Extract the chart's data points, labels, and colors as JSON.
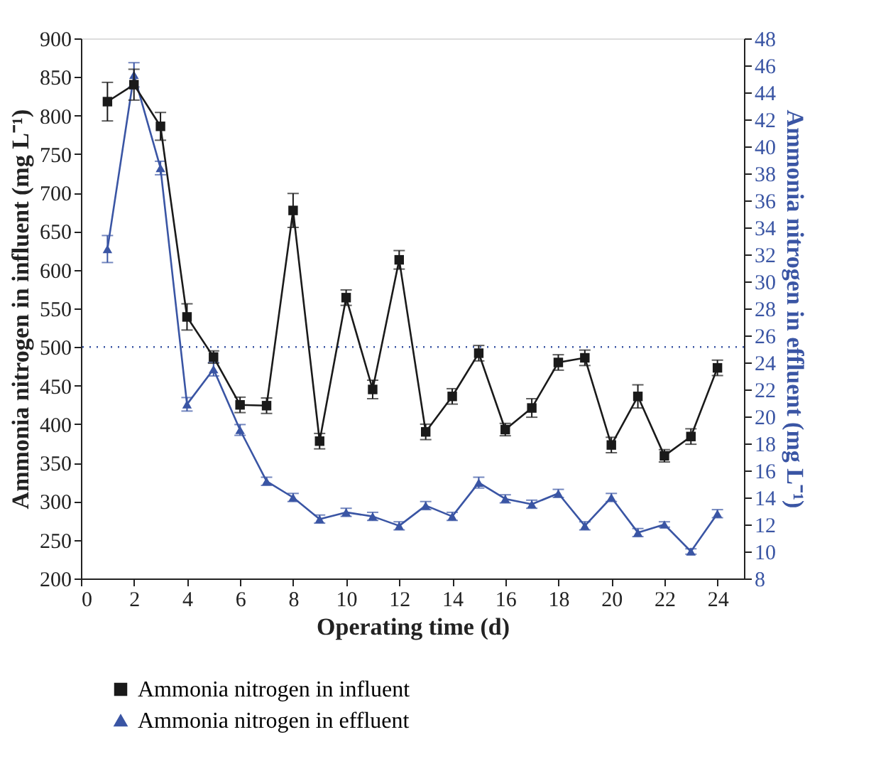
{
  "chart_data": {
    "type": "line",
    "xlabel": "Operating time (d)",
    "ylabel": "Ammonia nitrogen in influent (mg L⁻¹)",
    "y2label": "Ammonia nitrogen in effluent (mg L⁻¹)",
    "x": [
      1,
      2,
      3,
      4,
      5,
      6,
      7,
      8,
      9,
      10,
      11,
      12,
      13,
      14,
      15,
      16,
      17,
      18,
      19,
      20,
      21,
      22,
      23,
      24
    ],
    "series": [
      {
        "name": "Ammonia nitrogen in influent",
        "color": "#1a1a1a",
        "marker": "square",
        "axis": "y",
        "values": [
          818,
          840,
          786,
          539,
          487,
          425,
          424,
          677,
          378,
          564,
          445,
          613,
          390,
          436,
          492,
          393,
          421,
          480,
          486,
          373,
          436,
          359,
          384,
          473
        ],
        "errors": [
          25,
          20,
          18,
          17,
          8,
          10,
          10,
          22,
          10,
          10,
          12,
          12,
          10,
          10,
          10,
          8,
          12,
          10,
          10,
          10,
          15,
          8,
          10,
          10
        ]
      },
      {
        "name": "Ammonia nitrogen in effluent",
        "color": "#3a55a4",
        "marker": "triangle",
        "axis": "y2",
        "values": [
          32.4,
          45.3,
          38.4,
          20.9,
          23.5,
          19.0,
          15.2,
          14.0,
          12.4,
          12.9,
          12.6,
          11.9,
          13.4,
          12.6,
          15.1,
          13.9,
          13.5,
          14.3,
          11.9,
          14.0,
          11.4,
          12.0,
          10.0,
          12.8
        ],
        "errors": [
          1,
          0.9,
          0.5,
          0.5,
          0.5,
          0.4,
          0.3,
          0.3,
          0.3,
          0.3,
          0.3,
          0.3,
          0.3,
          0.3,
          0.4,
          0.3,
          0.3,
          0.3,
          0.3,
          0.3,
          0.3,
          0.2,
          0.2,
          0.3
        ]
      }
    ],
    "xlim": [
      0,
      25
    ],
    "xticks": [
      0,
      2,
      4,
      6,
      8,
      10,
      12,
      14,
      16,
      18,
      20,
      22,
      24
    ],
    "ylim": [
      200,
      900
    ],
    "yticks": [
      200,
      250,
      300,
      350,
      400,
      450,
      500,
      550,
      600,
      650,
      700,
      750,
      800,
      850,
      900
    ],
    "y2lim": [
      8,
      48
    ],
    "y2ticks": [
      8,
      10,
      12,
      14,
      16,
      18,
      20,
      22,
      24,
      26,
      28,
      30,
      32,
      34,
      36,
      38,
      40,
      42,
      44,
      46,
      48
    ],
    "ref_lines": [
      {
        "axis": "y",
        "value": 500,
        "color": "#3a55a4",
        "line_style": "dotted"
      }
    ],
    "grid": false,
    "legend": "bottom",
    "line_style": "solid"
  }
}
